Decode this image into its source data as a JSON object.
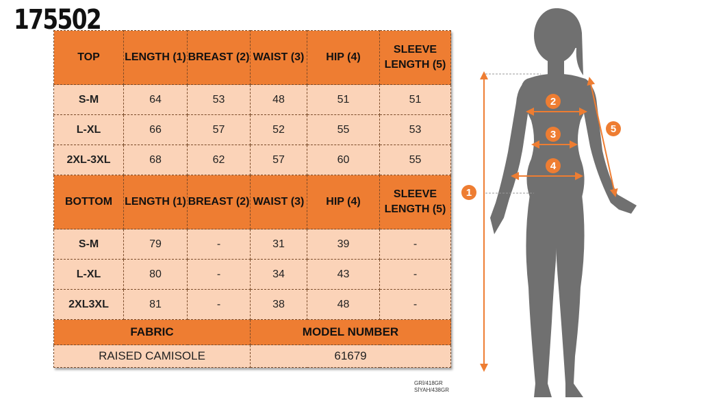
{
  "product_code": "175502",
  "top_header": {
    "label": "TOP",
    "length": "LENGTH (1)",
    "breast": "BREAST (2)",
    "waist": "WAIST (3)",
    "hip": "HIP (4)",
    "sleeve": "SLEEVE LENGTH (5)"
  },
  "top_rows": [
    {
      "size": "S-M",
      "length": "64",
      "breast": "53",
      "waist": "48",
      "hip": "51",
      "sleeve": "51"
    },
    {
      "size": "L-XL",
      "length": "66",
      "breast": "57",
      "waist": "52",
      "hip": "55",
      "sleeve": "53"
    },
    {
      "size": "2XL-3XL",
      "length": "68",
      "breast": "62",
      "waist": "57",
      "hip": "60",
      "sleeve": "55"
    }
  ],
  "bottom_header": {
    "label": "BOTTOM",
    "length": "LENGTH (1)",
    "breast": "BREAST (2)",
    "waist": "WAIST (3)",
    "hip": "HIP (4)",
    "sleeve": "SLEEVE LENGTH (5)"
  },
  "bottom_rows": [
    {
      "size": "S-M",
      "length": "79",
      "breast": "-",
      "waist": "31",
      "hip": "39",
      "sleeve": "-"
    },
    {
      "size": "L-XL",
      "length": "80",
      "breast": "-",
      "waist": "34",
      "hip": "43",
      "sleeve": "-"
    },
    {
      "size": "2XL3XL",
      "length": "81",
      "breast": "-",
      "waist": "38",
      "hip": "48",
      "sleeve": "-"
    }
  ],
  "footer": {
    "fabric_label": "FABRIC",
    "model_label": "MODEL NUMBER",
    "fabric_value": "RAISED CAMISOLE",
    "model_value": "61679"
  },
  "weights": {
    "grey": "GRİ/418GR",
    "black": "SİYAH/438GR"
  },
  "figure": {
    "markers": [
      "1",
      "2",
      "3",
      "4",
      "5"
    ]
  },
  "colors": {
    "accent": "#ee7d32",
    "cell": "#fbd3b8",
    "silhouette": "#707070"
  }
}
